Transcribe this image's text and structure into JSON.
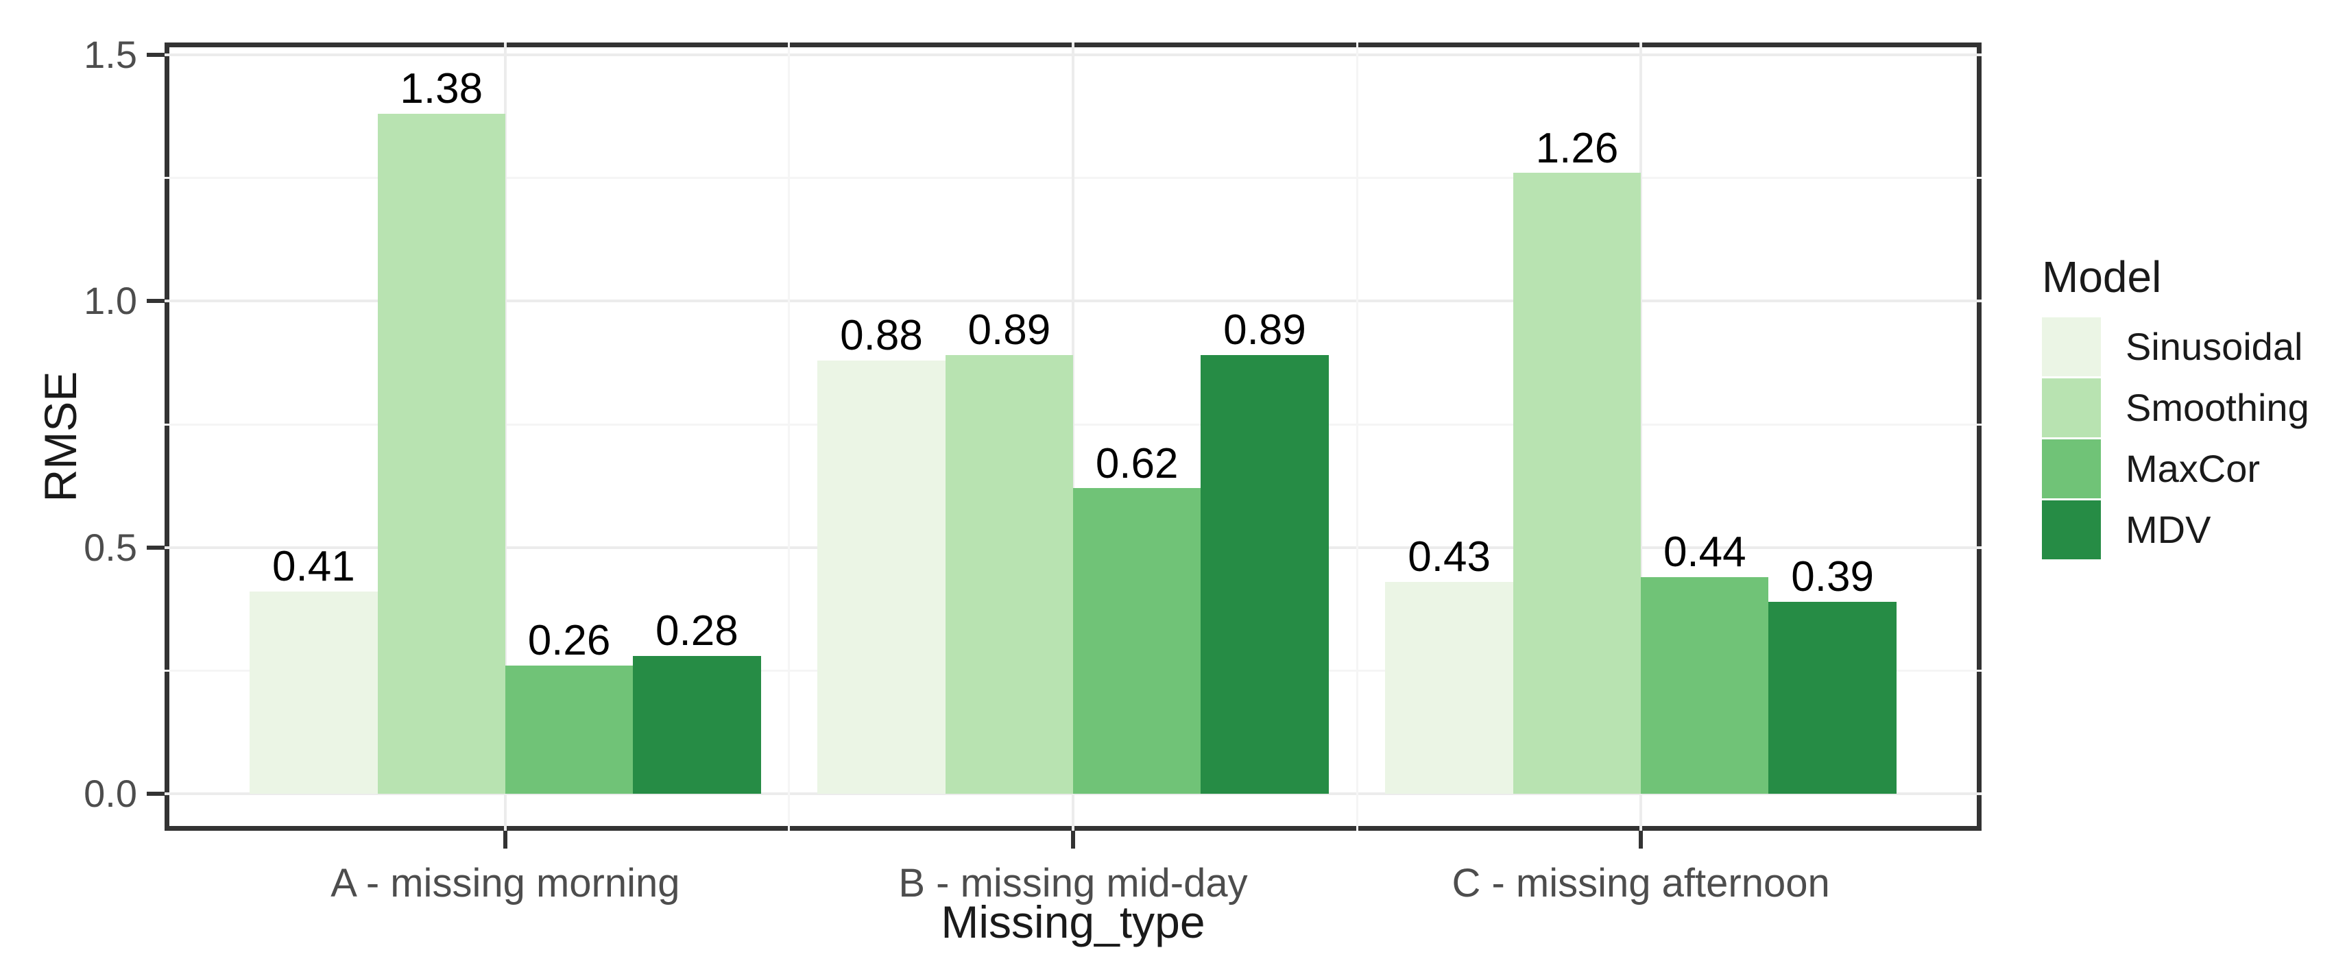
{
  "chart_data": {
    "type": "bar",
    "title": "",
    "xlabel": "Missing_type",
    "ylabel": "RMSE",
    "legend_title": "Model",
    "legend_position": "right",
    "grid": true,
    "categories": [
      "A - missing morning",
      "B - missing mid-day",
      "C - missing afternoon"
    ],
    "series": [
      {
        "name": "Sinusoidal",
        "color": "#EBF5E5",
        "values": [
          0.41,
          0.88,
          0.43
        ],
        "labels": [
          "0.41",
          "0.88",
          "0.43"
        ]
      },
      {
        "name": "Smoothing",
        "color": "#B8E3B1",
        "values": [
          1.38,
          0.89,
          1.26
        ],
        "labels": [
          "1.38",
          "0.89",
          "1.26"
        ]
      },
      {
        "name": "MaxCor",
        "color": "#70C377",
        "values": [
          0.26,
          0.62,
          0.44
        ],
        "labels": [
          "0.26",
          "0.62",
          "0.44"
        ]
      },
      {
        "name": "MDV",
        "color": "#268C45",
        "values": [
          0.28,
          0.89,
          0.39
        ],
        "labels": [
          "0.28",
          "0.89",
          "0.39"
        ]
      }
    ],
    "y_ticks": [
      {
        "value": 0.0,
        "label": "0.0"
      },
      {
        "value": 0.5,
        "label": "0.5"
      },
      {
        "value": 1.0,
        "label": "1.0"
      },
      {
        "value": 1.5,
        "label": "1.5"
      }
    ],
    "y_minor_ticks": [
      0.25,
      0.75,
      1.25
    ],
    "ylim": [
      -0.075,
      1.525
    ],
    "colors": {
      "background": "#FFFFFF",
      "panel_border": "#333333",
      "grid_major": "#ECECEC",
      "grid_minor": "#F5F5F5",
      "tick_mark": "#333333",
      "tick_text": "#4D4D4D",
      "axis_title_text": "#1A1A1A",
      "value_label_text": "#000000"
    }
  }
}
